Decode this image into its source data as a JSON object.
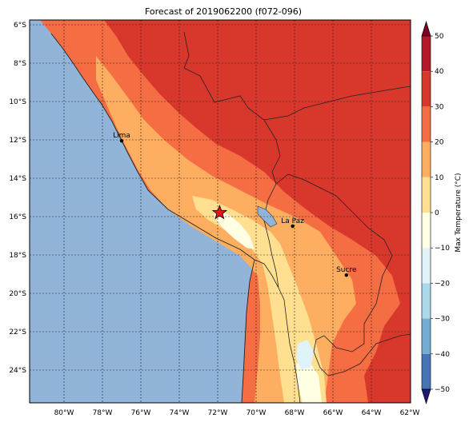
{
  "title": "Forecast of 2019062200 (f072-096)",
  "colorbar": {
    "label": "Max Temperature (°C)",
    "ticks": [
      "50",
      "40",
      "30",
      "20",
      "10",
      "0",
      "−10",
      "−20",
      "−30",
      "−40",
      "−50"
    ],
    "colors": [
      "#7a0025",
      "#b3182b",
      "#d8382c",
      "#f46d43",
      "#fdae61",
      "#fee090",
      "#ffffe4",
      "#e0f3f8",
      "#abd9e9",
      "#74add1",
      "#4575b4",
      "#313695",
      "#1a1a75"
    ]
  },
  "map": {
    "lon_labels": [
      "80°W",
      "78°W",
      "76°W",
      "74°W",
      "72°W",
      "70°W",
      "68°W",
      "66°W",
      "64°W",
      "62°W"
    ],
    "lat_labels": [
      "6°S",
      "8°S",
      "10°S",
      "12°S",
      "14°S",
      "16°S",
      "18°S",
      "20°S",
      "22°S",
      "24°S"
    ],
    "ocean_color": "#92b4d8",
    "cities": [
      {
        "name": "Lima",
        "lon": -77.0,
        "lat": -12.05
      },
      {
        "name": "La Paz",
        "lon": -68.1,
        "lat": -16.5
      },
      {
        "name": "Sucre",
        "lon": -65.3,
        "lat": -19.05
      }
    ],
    "marker": {
      "name": "star-marker",
      "lon": -71.9,
      "lat": -15.8,
      "color": "#e8151a"
    }
  }
}
